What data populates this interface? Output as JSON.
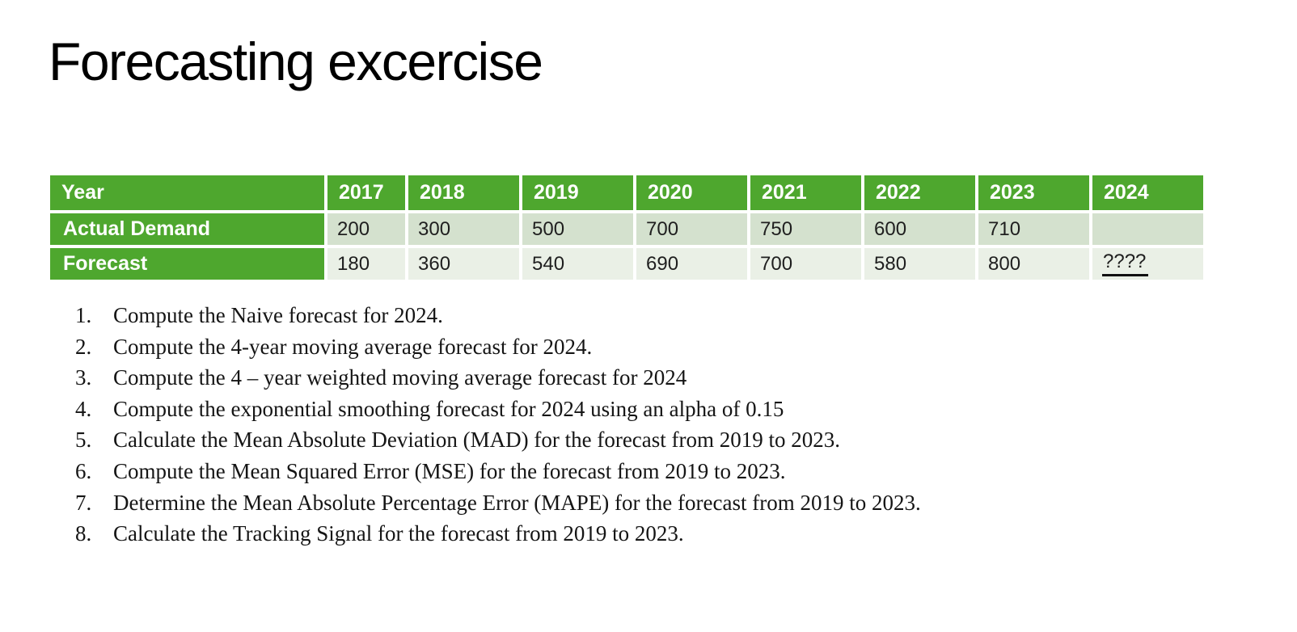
{
  "title": "Forecasting excercise",
  "colors": {
    "header_green": "#4EA72E",
    "row_alt1": "#D4E1CE",
    "row_alt2": "#EAF0E6",
    "text_dark": "#1F1F1F",
    "text_body": "#151515"
  },
  "table": {
    "header": {
      "label": "Year",
      "years": [
        "2017",
        "2018",
        "2019",
        "2020",
        "2021",
        "2022",
        "2023",
        "2024"
      ]
    },
    "rows": [
      {
        "label": "Actual Demand",
        "values": [
          "200",
          "300",
          "500",
          "700",
          "750",
          "600",
          "710",
          ""
        ]
      },
      {
        "label": "Forecast",
        "values": [
          "180",
          "360",
          "540",
          "690",
          "700",
          "580",
          "800",
          "????"
        ]
      }
    ]
  },
  "tasks": {
    "items": [
      {
        "number": "1.",
        "text": "Compute the Naive forecast for 2024."
      },
      {
        "number": "2.",
        "text": "Compute the 4-year moving average forecast for 2024."
      },
      {
        "number": "3.",
        "text": "Compute the 4 – year weighted moving average forecast for 2024"
      },
      {
        "number": "4.",
        "text": "Compute the exponential smoothing forecast for 2024 using an alpha of 0.15"
      },
      {
        "number": "5.",
        "text": "Calculate the Mean Absolute Deviation (MAD) for the forecast from 2019 to 2023."
      },
      {
        "number": "6.",
        "text": "Compute the Mean Squared Error (MSE) for the forecast from 2019 to 2023."
      },
      {
        "number": "7.",
        "text": "Determine the Mean Absolute Percentage Error (MAPE) for the forecast from 2019 to 2023."
      },
      {
        "number": "8.",
        "text": "Calculate the Tracking Signal for the forecast from 2019 to 2023."
      }
    ]
  }
}
